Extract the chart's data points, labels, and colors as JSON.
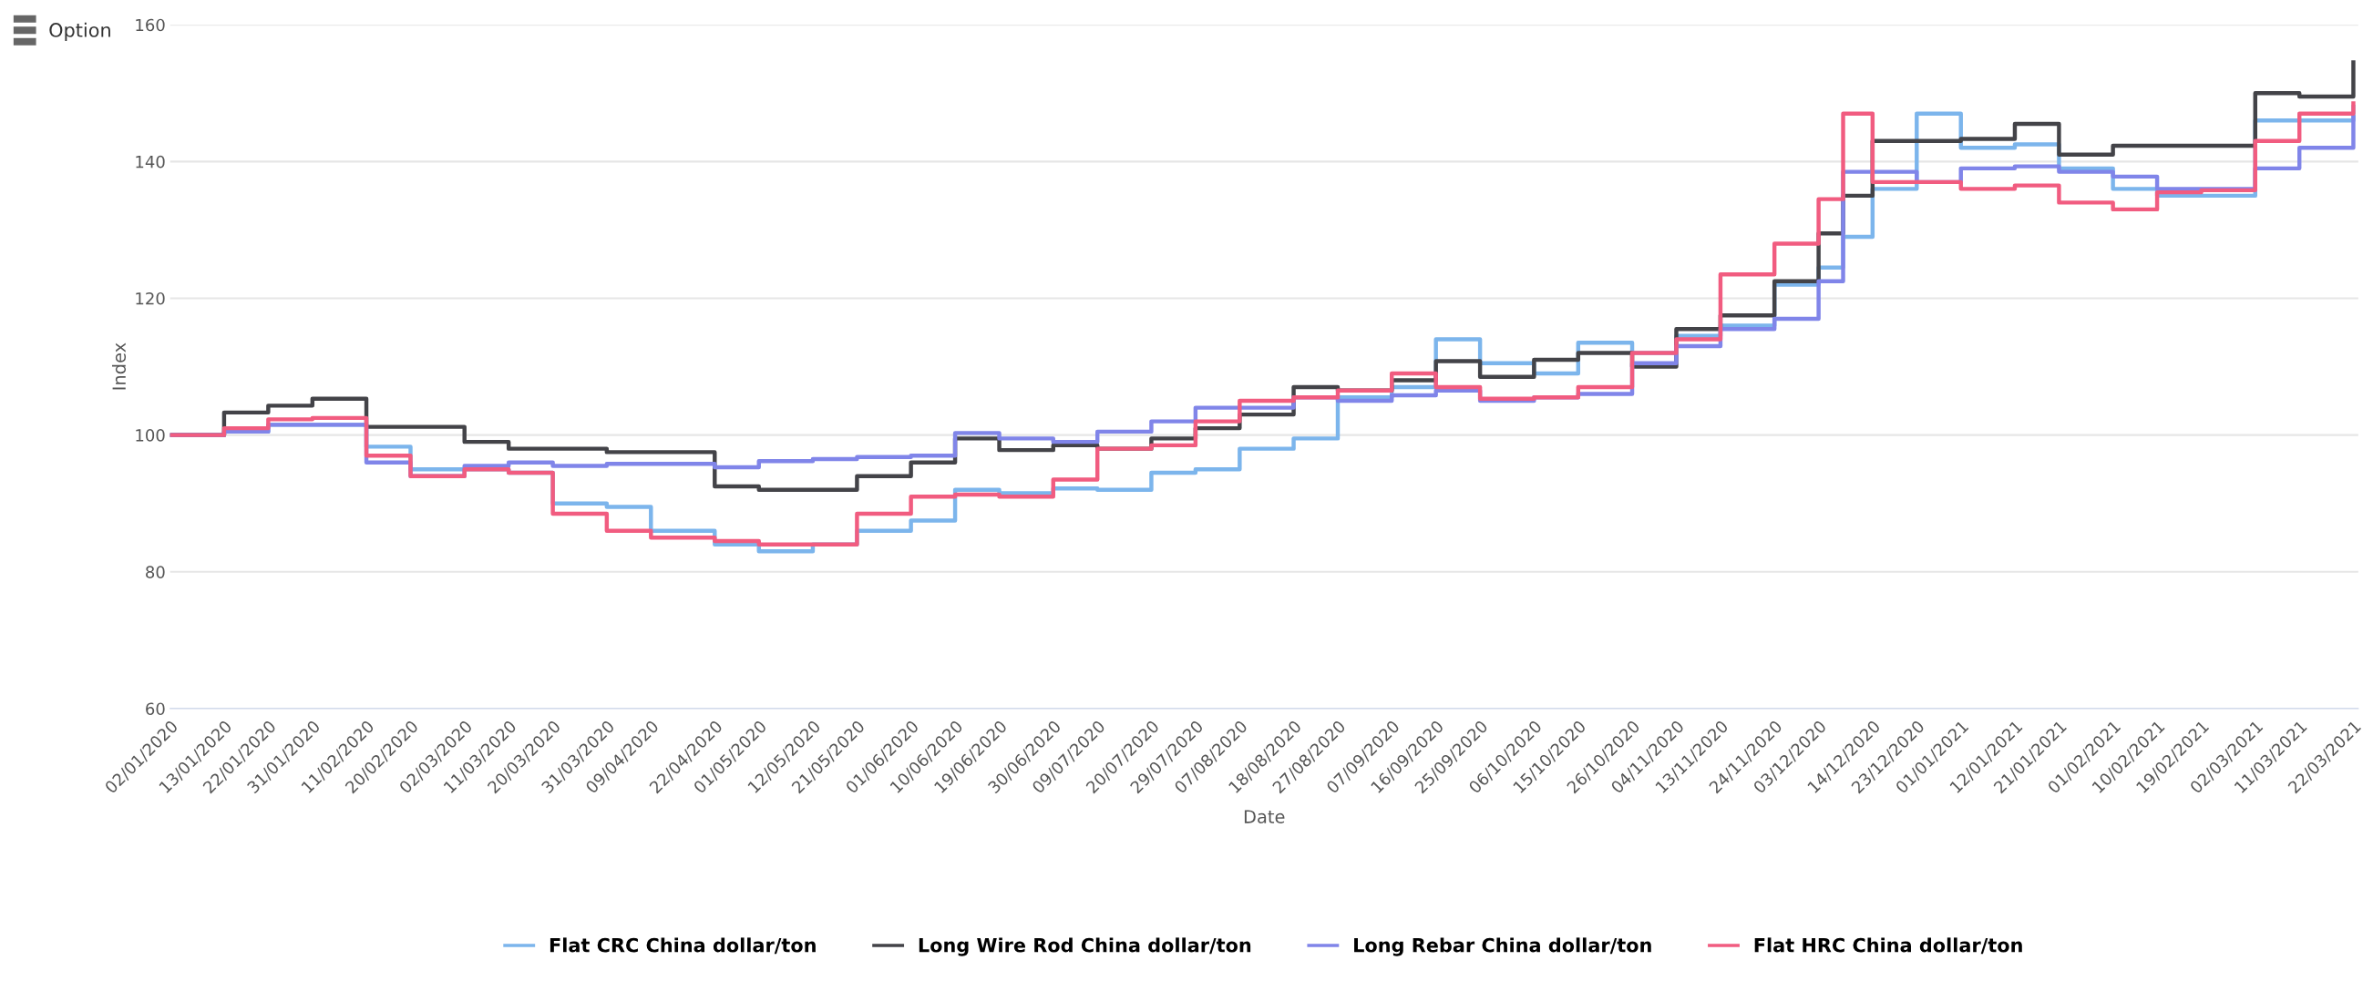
{
  "chart_data": {
    "type": "step",
    "xlabel": "Date",
    "ylabel": "Index",
    "x": [
      "2020-01-02",
      "2020-01-13",
      "2020-01-22",
      "2020-01-31",
      "2020-02-11",
      "2020-02-20",
      "2020-03-02",
      "2020-03-11",
      "2020-03-20",
      "2020-03-31",
      "2020-04-09",
      "2020-04-22",
      "2020-05-01",
      "2020-05-12",
      "2020-05-21",
      "2020-06-01",
      "2020-06-10",
      "2020-06-19",
      "2020-06-30",
      "2020-07-09",
      "2020-07-20",
      "2020-07-29",
      "2020-08-07",
      "2020-08-18",
      "2020-08-27",
      "2020-09-07",
      "2020-09-16",
      "2020-09-25",
      "2020-10-06",
      "2020-10-15",
      "2020-10-26",
      "2020-11-04",
      "2020-11-13",
      "2020-11-24",
      "2020-12-03",
      "2020-12-08",
      "2020-12-14",
      "2020-12-23",
      "2021-01-01",
      "2021-01-12",
      "2021-01-21",
      "2021-02-01",
      "2021-02-10",
      "2021-02-19",
      "2021-03-02",
      "2021-03-11",
      "2021-03-22"
    ],
    "series": [
      {
        "name": "Flat CRC China dollar/ton",
        "color": "#7cb5ec",
        "values": [
          100,
          100.5,
          101.5,
          101.5,
          98.3,
          95,
          95,
          94.5,
          90,
          89.5,
          86,
          84,
          83,
          84,
          86,
          87.5,
          92,
          91.5,
          92.2,
          92,
          94.5,
          95,
          98,
          99.5,
          105.5,
          107,
          114,
          110.5,
          109,
          113.5,
          112,
          114.5,
          116,
          122,
          124.5,
          129,
          136,
          147,
          142,
          142.5,
          139,
          136,
          135,
          135,
          146,
          146,
          148
        ]
      },
      {
        "name": "Long Wire Rod China dollar/ton",
        "color": "#434348",
        "values": [
          100,
          103.3,
          104.3,
          105.3,
          101.2,
          101.2,
          99,
          98,
          98,
          97.5,
          97.5,
          92.5,
          92,
          92,
          94,
          96,
          99.5,
          97.8,
          98.5,
          98,
          99.5,
          101,
          103,
          107,
          106.5,
          108,
          110.8,
          108.5,
          111,
          112,
          110,
          115.5,
          117.5,
          122.5,
          129.5,
          135,
          143,
          143,
          143.3,
          145.5,
          141,
          142.3,
          142.3,
          142.3,
          150,
          149.5,
          154.5
        ]
      },
      {
        "name": "Long Rebar China dollar/ton",
        "color": "#8085e9",
        "values": [
          100,
          100.5,
          101.5,
          101.5,
          96,
          94,
          95.5,
          96,
          95.5,
          95.8,
          95.8,
          95.3,
          96.2,
          96.5,
          96.8,
          97,
          100.3,
          99.5,
          99,
          100.5,
          102,
          104,
          104,
          105.5,
          105,
          105.8,
          106.5,
          105,
          105.5,
          106,
          110.5,
          113,
          115.5,
          117,
          122.5,
          138.5,
          138.5,
          137,
          139,
          139.3,
          138.5,
          137.8,
          136,
          136,
          139,
          142,
          146.5
        ]
      },
      {
        "name": "Flat HRC China dollar/ton",
        "color": "#f15c80",
        "values": [
          100,
          101,
          102.3,
          102.5,
          97,
          94,
          95,
          94.5,
          88.5,
          86,
          85,
          84.5,
          84,
          84,
          88.5,
          91,
          91.3,
          91,
          93.5,
          98,
          98.5,
          102,
          105,
          105.5,
          106.5,
          109,
          107,
          105.3,
          105.5,
          107,
          112,
          114,
          123.5,
          128,
          134.5,
          147,
          137,
          137,
          136,
          136.5,
          134,
          133,
          135.5,
          135.8,
          143,
          147,
          148.5
        ]
      }
    ],
    "xlim": [
      "2020-01-02",
      "2021-03-23"
    ],
    "xticks": [
      {
        "value": "2020-01-02",
        "label": "02/01/2020"
      },
      {
        "value": "2020-01-13",
        "label": "13/01/2020"
      },
      {
        "value": "2020-01-22",
        "label": "22/01/2020"
      },
      {
        "value": "2020-01-31",
        "label": "31/01/2020"
      },
      {
        "value": "2020-02-11",
        "label": "11/02/2020"
      },
      {
        "value": "2020-02-20",
        "label": "20/02/2020"
      },
      {
        "value": "2020-03-02",
        "label": "02/03/2020"
      },
      {
        "value": "2020-03-11",
        "label": "11/03/2020"
      },
      {
        "value": "2020-03-20",
        "label": "20/03/2020"
      },
      {
        "value": "2020-03-31",
        "label": "31/03/2020"
      },
      {
        "value": "2020-04-09",
        "label": "09/04/2020"
      },
      {
        "value": "2020-04-22",
        "label": "22/04/2020"
      },
      {
        "value": "2020-05-01",
        "label": "01/05/2020"
      },
      {
        "value": "2020-05-12",
        "label": "12/05/2020"
      },
      {
        "value": "2020-05-21",
        "label": "21/05/2020"
      },
      {
        "value": "2020-06-01",
        "label": "01/06/2020"
      },
      {
        "value": "2020-06-10",
        "label": "10/06/2020"
      },
      {
        "value": "2020-06-19",
        "label": "19/06/2020"
      },
      {
        "value": "2020-06-30",
        "label": "30/06/2020"
      },
      {
        "value": "2020-07-09",
        "label": "09/07/2020"
      },
      {
        "value": "2020-07-20",
        "label": "20/07/2020"
      },
      {
        "value": "2020-07-29",
        "label": "29/07/2020"
      },
      {
        "value": "2020-08-07",
        "label": "07/08/2020"
      },
      {
        "value": "2020-08-18",
        "label": "18/08/2020"
      },
      {
        "value": "2020-08-27",
        "label": "27/08/2020"
      },
      {
        "value": "2020-09-07",
        "label": "07/09/2020"
      },
      {
        "value": "2020-09-16",
        "label": "16/09/2020"
      },
      {
        "value": "2020-09-25",
        "label": "25/09/2020"
      },
      {
        "value": "2020-10-06",
        "label": "06/10/2020"
      },
      {
        "value": "2020-10-15",
        "label": "15/10/2020"
      },
      {
        "value": "2020-10-26",
        "label": "26/10/2020"
      },
      {
        "value": "2020-11-04",
        "label": "04/11/2020"
      },
      {
        "value": "2020-11-13",
        "label": "13/11/2020"
      },
      {
        "value": "2020-11-24",
        "label": "24/11/2020"
      },
      {
        "value": "2020-12-03",
        "label": "03/12/2020"
      },
      {
        "value": "2020-12-14",
        "label": "14/12/2020"
      },
      {
        "value": "2020-12-23",
        "label": "23/12/2020"
      },
      {
        "value": "2021-01-01",
        "label": "01/01/2021"
      },
      {
        "value": "2021-01-12",
        "label": "12/01/2021"
      },
      {
        "value": "2021-01-21",
        "label": "21/01/2021"
      },
      {
        "value": "2021-02-01",
        "label": "01/02/2021"
      },
      {
        "value": "2021-02-10",
        "label": "10/02/2021"
      },
      {
        "value": "2021-02-19",
        "label": "19/02/2021"
      },
      {
        "value": "2021-03-02",
        "label": "02/03/2021"
      },
      {
        "value": "2021-03-11",
        "label": "11/03/2021"
      },
      {
        "value": "2021-03-22",
        "label": "22/03/2021"
      }
    ],
    "ylim": [
      60,
      160
    ],
    "yticks": [
      60,
      80,
      100,
      120,
      140,
      160
    ],
    "grid": "y",
    "legend": "bottom",
    "annotations": [
      "Option"
    ]
  }
}
